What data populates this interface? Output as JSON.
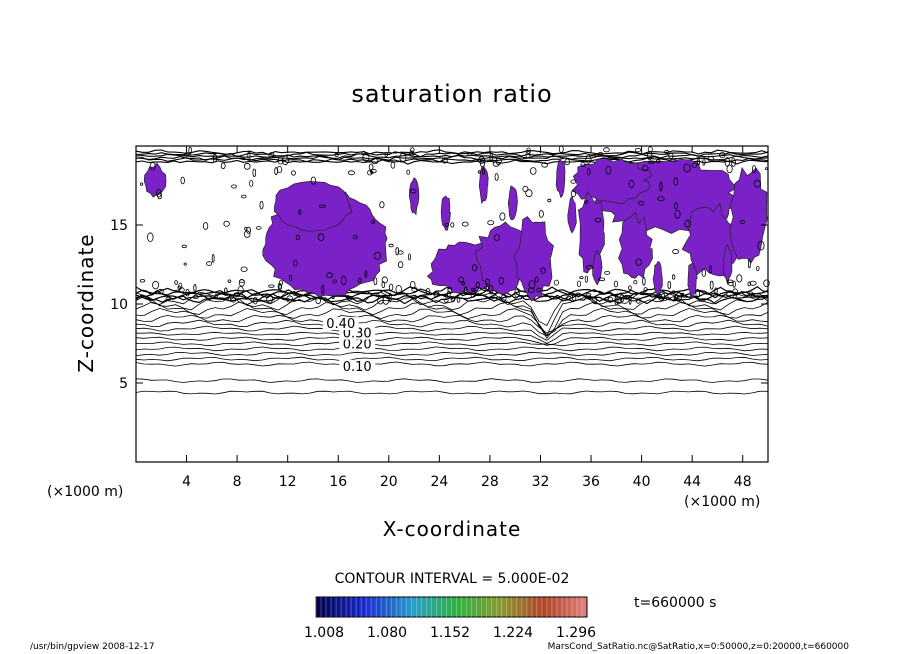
{
  "chart_data": {
    "type": "contour",
    "title": "saturation ratio",
    "xlabel": "X-coordinate",
    "ylabel": "Z-coordinate",
    "x_units": "(×1000 m)",
    "z_units": "(×1000 m)",
    "xlim": [
      0,
      50
    ],
    "ylim": [
      0,
      20
    ],
    "x_ticks": [
      4,
      8,
      12,
      16,
      20,
      24,
      28,
      32,
      36,
      40,
      44,
      48
    ],
    "y_ticks": [
      5,
      10,
      15
    ],
    "contour_interval_text": "CONTOUR INTERVAL = 5.000E-02",
    "contour_labels": [
      {
        "text": "0.10",
        "x": 17.5,
        "z": 5.9
      },
      {
        "text": "0.20",
        "x": 17.5,
        "z": 7.3
      },
      {
        "text": "0.30",
        "x": 17.5,
        "z": 8.0
      },
      {
        "text": "0.40",
        "x": 16.2,
        "z": 8.6
      }
    ],
    "supersaturated_color": "#7a22c8",
    "colorbar_labels": [
      "1.008",
      "1.080",
      "1.152",
      "1.224",
      "1.296"
    ],
    "time_text": "t=660000 s"
  },
  "footer": {
    "left": "/usr/bin/gpview   2008-12-17",
    "right": "MarsCond_SatRatio.nc@SatRatio,x=0:50000,z=0:20000,t=660000"
  }
}
